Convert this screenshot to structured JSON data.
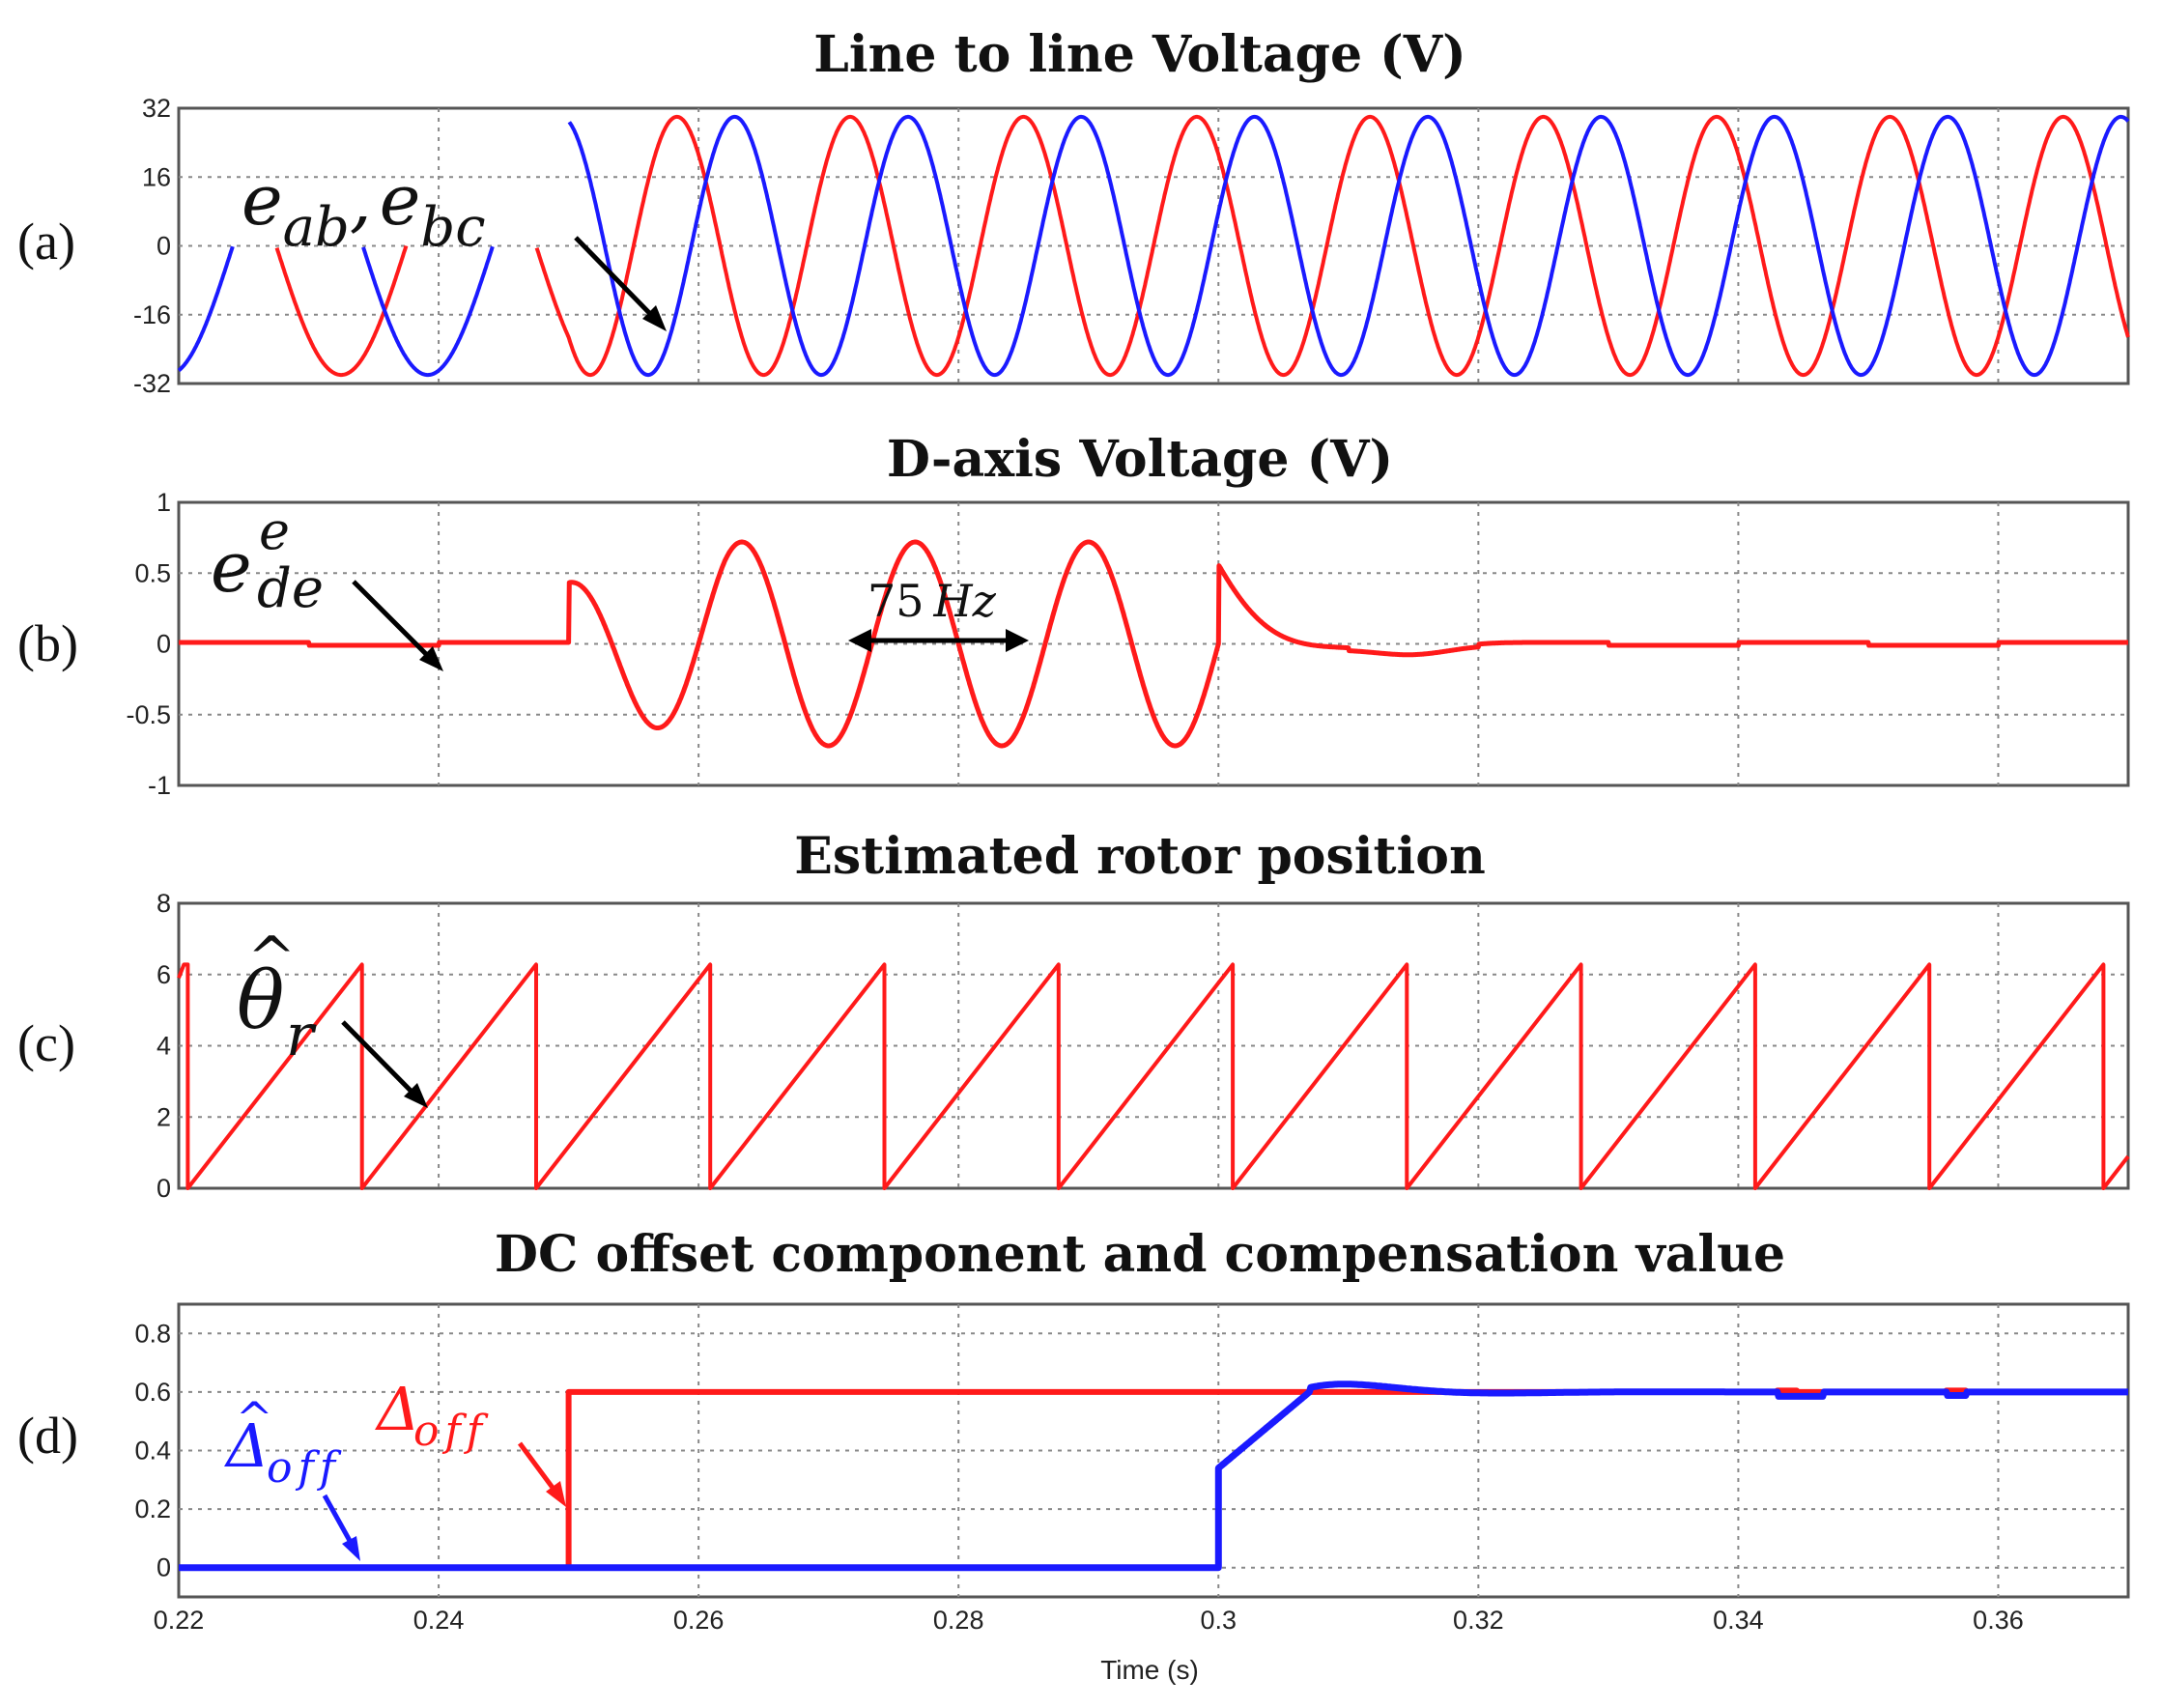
{
  "chart_data": [
    {
      "panel": "(a)",
      "type": "line",
      "title": "Line to line Voltage (V)",
      "ylim": [
        -32,
        32
      ],
      "yticks": [
        "32",
        "16",
        "0",
        "-16",
        "-32"
      ],
      "xlim": [
        0.22,
        0.37
      ],
      "grid": true,
      "series": [
        {
          "name": "e_ab",
          "color": "#ff1a1a",
          "amplitude": 30,
          "freq_hz_before_0_25": 50,
          "freq_hz_after_0_25": 75,
          "intermittent_before": 0.25
        },
        {
          "name": "e_bc",
          "color": "#1a1aff",
          "amplitude": 30,
          "freq_hz_before_0_25": 50,
          "freq_hz_after_0_25": 75,
          "intermittent_before": 0.25
        }
      ],
      "annotation": {
        "base": "e",
        "sub1": "ab",
        "sep": ",",
        "base2": "e",
        "sub2": "bc"
      }
    },
    {
      "panel": "(b)",
      "type": "line",
      "title": "D-axis Voltage (V)",
      "ylim": [
        -1,
        1
      ],
      "yticks": [
        "1",
        "0.5",
        "0",
        "-0.5",
        "-1"
      ],
      "xlim": [
        0.22,
        0.37
      ],
      "grid": true,
      "series": [
        {
          "name": "e_de^e",
          "color": "#ff1a1a",
          "oscillation_start": 0.25,
          "oscillation_end": 0.3,
          "oscillation_freq_hz": 75,
          "peak": 0.72,
          "settles_to": 0
        }
      ],
      "annotation": {
        "base": "e",
        "sub": "de",
        "sup": "e",
        "freq_label_num": "75",
        "freq_label_unit": "Hz"
      }
    },
    {
      "panel": "(c)",
      "type": "line",
      "title": "Estimated rotor position",
      "ylim": [
        0,
        8
      ],
      "yticks": [
        "8",
        "6",
        "4",
        "2",
        "0"
      ],
      "xlim": [
        0.22,
        0.37
      ],
      "grid": true,
      "series": [
        {
          "name": "theta_r_hat",
          "color": "#ff1a1a",
          "sawtooth_max": 6.28,
          "resets": [
            0.2207,
            0.2341,
            0.2475,
            0.2609,
            0.2743,
            0.2877,
            0.3011,
            0.3145,
            0.3279,
            0.3413,
            0.3547,
            0.3681
          ]
        }
      ],
      "annotation": {
        "base": "θ",
        "hat": "^",
        "sub": "r"
      }
    },
    {
      "panel": "(d)",
      "type": "line",
      "title": "DC offset component and compensation value",
      "ylim": [
        -0.1,
        0.9
      ],
      "yticks": [
        "0.8",
        "0.6",
        "0.4",
        "0.2",
        "0"
      ],
      "xlim": [
        0.22,
        0.37
      ],
      "xticks": [
        "0.22",
        "0.24",
        "0.26",
        "0.28",
        "0.3",
        "0.32",
        "0.34",
        "0.36"
      ],
      "xlabel": "Time (s)",
      "grid": true,
      "series": [
        {
          "name": "Delta_off",
          "color": "#ff1a1a",
          "step_time": 0.25,
          "step_value": 0.6
        },
        {
          "name": "Delta_off_hat",
          "color": "#1a1aff",
          "start_time": 0.3,
          "jump_to": 0.34,
          "overshoot": 0.65,
          "final": 0.6
        }
      ],
      "annotation": {
        "red_base": "Δ",
        "red_sub": "off",
        "blue_base": "Δ",
        "blue_hat": "^",
        "blue_sub": "off"
      }
    }
  ],
  "colors": {
    "red": "#ff1a1a",
    "blue": "#1a1aff"
  }
}
